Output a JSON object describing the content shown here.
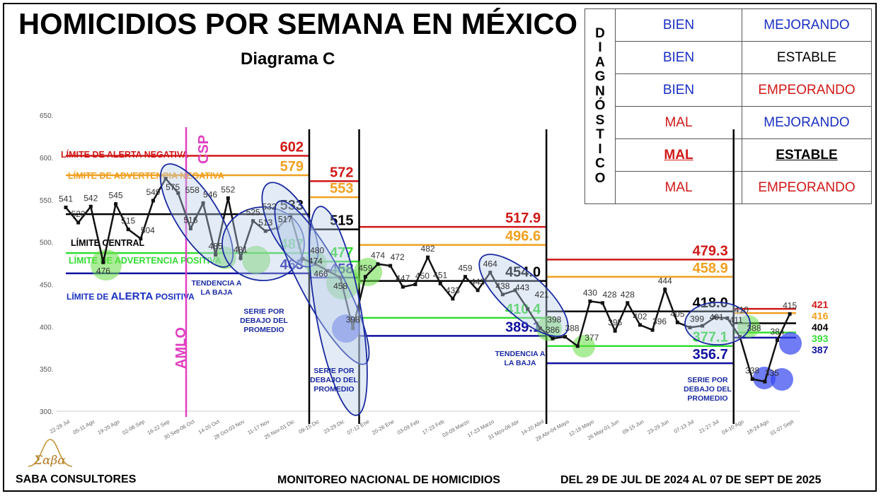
{
  "header": {
    "title": "HOMICIDIOS POR SEMANA EN MÉXICO",
    "subtitle": "Diagrama C"
  },
  "diagnosis": {
    "vertical_label": [
      "D",
      "I",
      "A",
      "G",
      "N",
      "Ó",
      "S",
      "T",
      "I",
      "C",
      "O"
    ],
    "rows": [
      {
        "state": "BIEN",
        "trend": "MEJORANDO",
        "state_color": "#1a2fc2",
        "trend_color": "#1a2fc2",
        "highlight": false
      },
      {
        "state": "BIEN",
        "trend": "ESTABLE",
        "state_color": "#1a2fc2",
        "trend_color": "#000000",
        "highlight": false
      },
      {
        "state": "BIEN",
        "trend": "EMPEORANDO",
        "state_color": "#1a2fc2",
        "trend_color": "#d01818",
        "highlight": false
      },
      {
        "state": "MAL",
        "trend": "MEJORANDO",
        "state_color": "#d01818",
        "trend_color": "#1a2fc2",
        "highlight": false
      },
      {
        "state": "MAL",
        "trend": "ESTABLE",
        "state_color": "#d01818",
        "trend_color": "#000000",
        "highlight": true
      },
      {
        "state": "MAL",
        "trend": "EMPEORANDO",
        "state_color": "#d01818",
        "trend_color": "#d01818",
        "highlight": false
      }
    ]
  },
  "chart_data": {
    "type": "line",
    "title": "HOMICIDIOS POR SEMANA EN MÉXICO",
    "ylim": [
      300,
      650
    ],
    "yticks": [
      "650.",
      "600.",
      "550.",
      "500.",
      "450.",
      "400.",
      "350.",
      "300."
    ],
    "ytick_values": [
      650,
      600,
      550,
      500,
      450,
      400,
      350,
      300
    ],
    "grid": false,
    "xtick_labels": [
      "22-28 Jul",
      "05-11 Ago",
      "19-25 Ago",
      "02-08 Sep",
      "16-22 Sep",
      "30 Sep-06 Oct",
      "14-20 Oct",
      "28 Oct-03 Nov",
      "11-17 Nov",
      "25 Nov-01 Dic",
      "09-15 Dic",
      "23-29 Dic",
      "07-12 Ene",
      "20-26 Ene",
      "03-09 Feb",
      "17-23 Feb",
      "03-09 Marzo",
      "17-23 Marzo",
      "31 Mzo-06 Abr",
      "14-20 Abril",
      "28 Abr-04 Mayo",
      "12-18 Mayo",
      "26 May-01 Jun",
      "09-15 Jun",
      "23-29 Jun",
      "07-13 Jul",
      "21-27 Jul",
      "04-10 Ago",
      "18-24 Ago",
      "01-07 Sept"
    ],
    "values": [
      541,
      523,
      542,
      476,
      545,
      515,
      504,
      549,
      575,
      558,
      516,
      546,
      485,
      552,
      481,
      525,
      513,
      517,
      532,
      480,
      474,
      466,
      458,
      398,
      459,
      474,
      472,
      447,
      450,
      482,
      451,
      433,
      459,
      443,
      464,
      438,
      443,
      421,
      398,
      386,
      388,
      377,
      430,
      428,
      395,
      428,
      402,
      396,
      444,
      405,
      399,
      401,
      411,
      410,
      388,
      338,
      335,
      384,
      415
    ],
    "limit_segments": [
      {
        "weeks": [
          0,
          19
        ],
        "alerta_negativa": "602",
        "advertencia_negativa": "579",
        "central": "533",
        "advertencia_positiva": "487",
        "alerta_positiva": "463"
      },
      {
        "weeks": [
          20,
          23
        ],
        "alerta_negativa": "572",
        "advertencia_negativa": "553",
        "central": "515",
        "advertencia_positiva": "477",
        "alerta_positiva": "458"
      },
      {
        "weeks": [
          24,
          38
        ],
        "alerta_negativa": "517.9",
        "advertencia_negativa": "496.6",
        "central": "454.0",
        "advertencia_positiva": "410.4",
        "alerta_positiva": "389.1"
      },
      {
        "weeks": [
          39,
          53
        ],
        "alerta_negativa": "479.3",
        "advertencia_negativa": "458.9",
        "central": "418.0",
        "advertencia_positiva": "377.1",
        "alerta_positiva": "356.7"
      },
      {
        "weeks": [
          54,
          58
        ],
        "alerta_negativa": "421",
        "advertencia_negativa": "416",
        "central": "404",
        "advertencia_positiva": "393",
        "alerta_positiva": "387"
      }
    ],
    "limit_colors": {
      "alerta_negativa": "#d01818",
      "advertencia_negativa": "#f0a020",
      "central": "#000000",
      "advertencia_positiva": "#33dd33",
      "alerta_positiva": "#1010a0"
    },
    "limit_labels": {
      "alerta_negativa": "LÍMITE DE ALERTA NEGATIVA",
      "advertencia_negativa": "LÍMITE DE ADVERTENCIA NEGATIVA",
      "central": "LÍMITE CENTRAL",
      "advertencia_positiva": "LÍMITE DE ADVERTENCIA POSITIVA",
      "alerta_positiva_pre": "LÍMITE DE ",
      "alerta_positiva_mid": "ALERTA",
      "alerta_positiva_post": " POSITIVA"
    },
    "markers": {
      "amlo": "AMLO",
      "csp": "CSP",
      "marker_color": "#e040c0"
    },
    "annotations": [
      {
        "lines": [
          "TENDENCIA A",
          "LA BAJA"
        ]
      },
      {
        "lines": [
          "SERIE POR",
          "DEBAJO DEL",
          "PROMEDIO"
        ]
      },
      {
        "lines": [
          "SERIE POR",
          "DEBAJO DEL",
          "PROMEDIO"
        ]
      },
      {
        "lines": [
          "TENDENCIA A",
          "LA BAJA"
        ]
      },
      {
        "lines": [
          "SERIE POR",
          "DEBAJO DEL",
          "PROMEDIO"
        ]
      }
    ]
  },
  "footer": {
    "logo_text": "Σαβα",
    "company": "SABA CONSULTORES",
    "program": "MONITOREO NACIONAL DE HOMICIDIOS",
    "period": "DEL 29 DE JUL DE 2024 AL 07 DE SEPT DE 2025"
  }
}
